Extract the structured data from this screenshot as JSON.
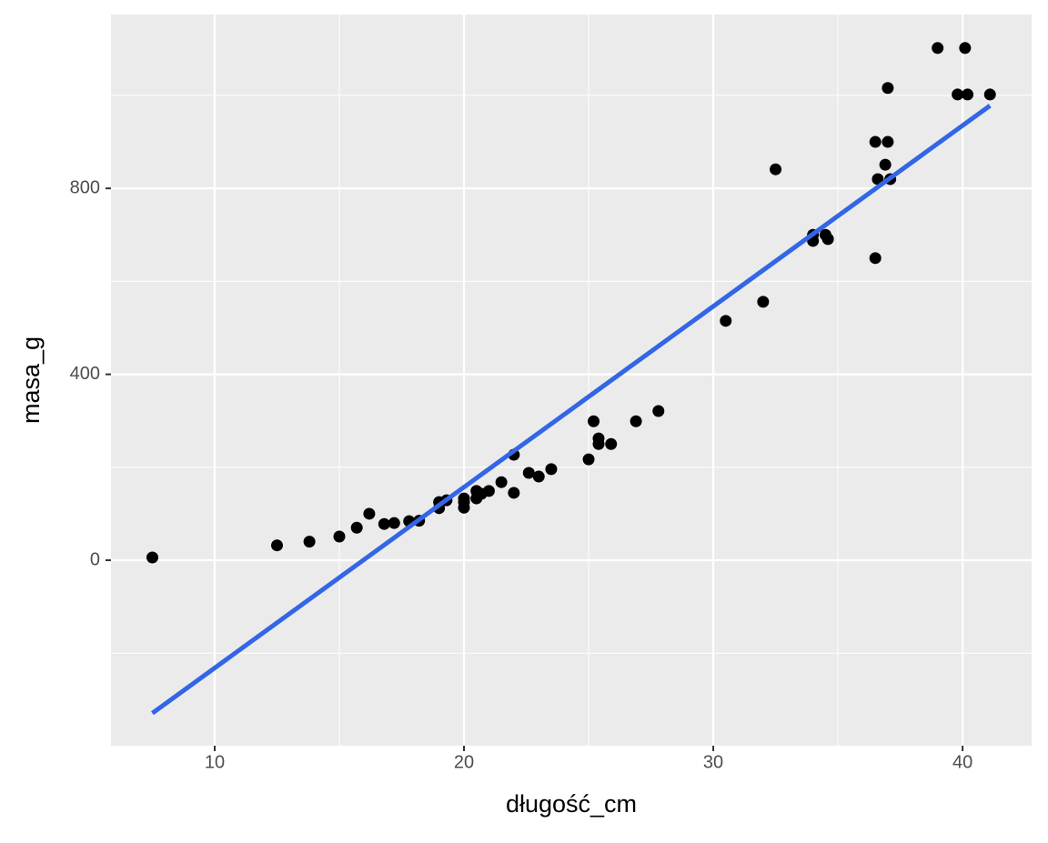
{
  "chart_data": {
    "type": "scatter",
    "x_label": "długość_cm",
    "y_label": "masa_g",
    "x": [
      7.5,
      12.5,
      13.8,
      15.0,
      15.7,
      16.2,
      16.8,
      17.2,
      17.8,
      18.2,
      19.0,
      19.0,
      19.3,
      20.0,
      20.0,
      20.0,
      20.5,
      20.5,
      20.7,
      21.0,
      21.5,
      22.0,
      22.0,
      22.6,
      23.0,
      23.5,
      25.0,
      25.2,
      25.4,
      25.4,
      25.9,
      26.9,
      27.8,
      30.5,
      32.0,
      32.5,
      34.0,
      34.0,
      34.5,
      34.6,
      36.5,
      36.5,
      36.6,
      36.9,
      37.0,
      37.1,
      37.0,
      39.0,
      40.1,
      39.8,
      40.2,
      41.1
    ],
    "values": [
      6,
      32,
      40,
      51,
      70,
      100,
      78,
      80,
      84,
      85,
      112,
      125,
      129,
      113,
      133,
      125,
      133,
      149,
      143,
      149,
      168,
      145,
      227,
      188,
      180,
      196,
      217,
      299,
      262,
      250,
      250,
      299,
      321,
      515,
      556,
      841,
      700,
      687,
      700,
      691,
      650,
      900,
      820,
      851,
      900,
      820,
      1016,
      1102,
      1102,
      1002,
      1002,
      1002
    ],
    "color": "#000000",
    "fit_line": {
      "x": [
        7.5,
        41.1
      ],
      "values": [
        -329,
        978
      ],
      "color": "#3366e6"
    },
    "xlim": [
      5.84,
      42.77
    ],
    "ylim": [
      -399,
      1174
    ],
    "xticks": [
      10,
      20,
      30,
      40
    ],
    "yticks": [
      0,
      400,
      800
    ],
    "xminor": [
      15,
      25,
      35
    ],
    "yminor": [
      -200,
      200,
      600,
      1000
    ],
    "grid": true
  }
}
